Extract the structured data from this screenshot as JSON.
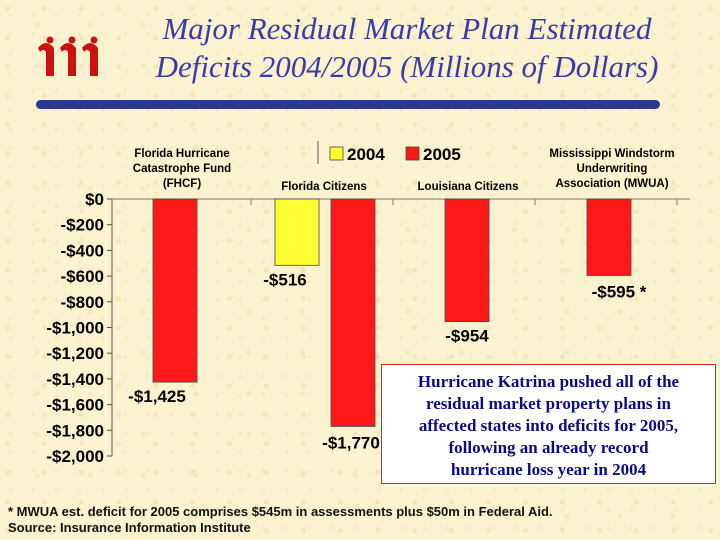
{
  "title": "Major Residual Market Plan Estimated Deficits 2004/2005 (Millions of Dollars)",
  "callout": {
    "lines": [
      "Hurricane Katrina pushed all of the",
      "residual market property plans in",
      "affected states into deficits for 2005,",
      "following an already record",
      "hurricane loss year in 2004"
    ]
  },
  "footnote": {
    "line1": "* MWUA est. deficit for 2005 comprises $545m in assessments plus $50m in Federal Aid.",
    "line2": "Source: Insurance Information Institute"
  },
  "colors": {
    "s2004": "#ffff33",
    "s2005": "#ff1a1a",
    "title": "#3a3aa8",
    "callout_text": "#0b0b80",
    "logo": "#cc1111"
  },
  "chart_data": {
    "type": "bar",
    "title": "Major Residual Market Plan Estimated Deficits 2004/2005 (Millions of Dollars)",
    "categories": [
      "Florida Hurricane Catastrophe Fund (FHCF)",
      "Florida Citizens",
      "Louisiana Citizens",
      "Mississippi Windstorm Underwriting Association (MWUA)"
    ],
    "category_label_lines": [
      [
        "Florida Hurricane",
        "Catastrophe Fund",
        "(FHCF)"
      ],
      [
        "Florida Citizens"
      ],
      [
        "Louisiana Citizens"
      ],
      [
        "Mississippi Windstorm",
        "Underwriting",
        "Association (MWUA)"
      ]
    ],
    "series": [
      {
        "name": "2004",
        "values": [
          null,
          -516,
          null,
          null
        ]
      },
      {
        "name": "2005",
        "values": [
          -1425,
          -1770,
          -954,
          -595
        ]
      }
    ],
    "data_labels": [
      {
        "category": 0,
        "series": "2005",
        "text": "-$1,425"
      },
      {
        "category": 1,
        "series": "2004",
        "text": "-$516"
      },
      {
        "category": 1,
        "series": "2005",
        "text": "-$1,770"
      },
      {
        "category": 2,
        "series": "2005",
        "text": "-$954"
      },
      {
        "category": 3,
        "series": "2005",
        "text": "-$595 *"
      }
    ],
    "yticks": [
      0,
      -200,
      -400,
      -600,
      -800,
      -1000,
      -1200,
      -1400,
      -1600,
      -1800,
      -2000
    ],
    "ytick_labels": [
      "$0",
      "-$200",
      "-$400",
      "-$600",
      "-$800",
      "-$1,000",
      "-$1,200",
      "-$1,400",
      "-$1,600",
      "-$1,800",
      "-$2,000"
    ],
    "ylim": [
      -2000,
      0
    ],
    "legend": [
      "2004",
      "2005"
    ],
    "legend_position": "top-center"
  }
}
